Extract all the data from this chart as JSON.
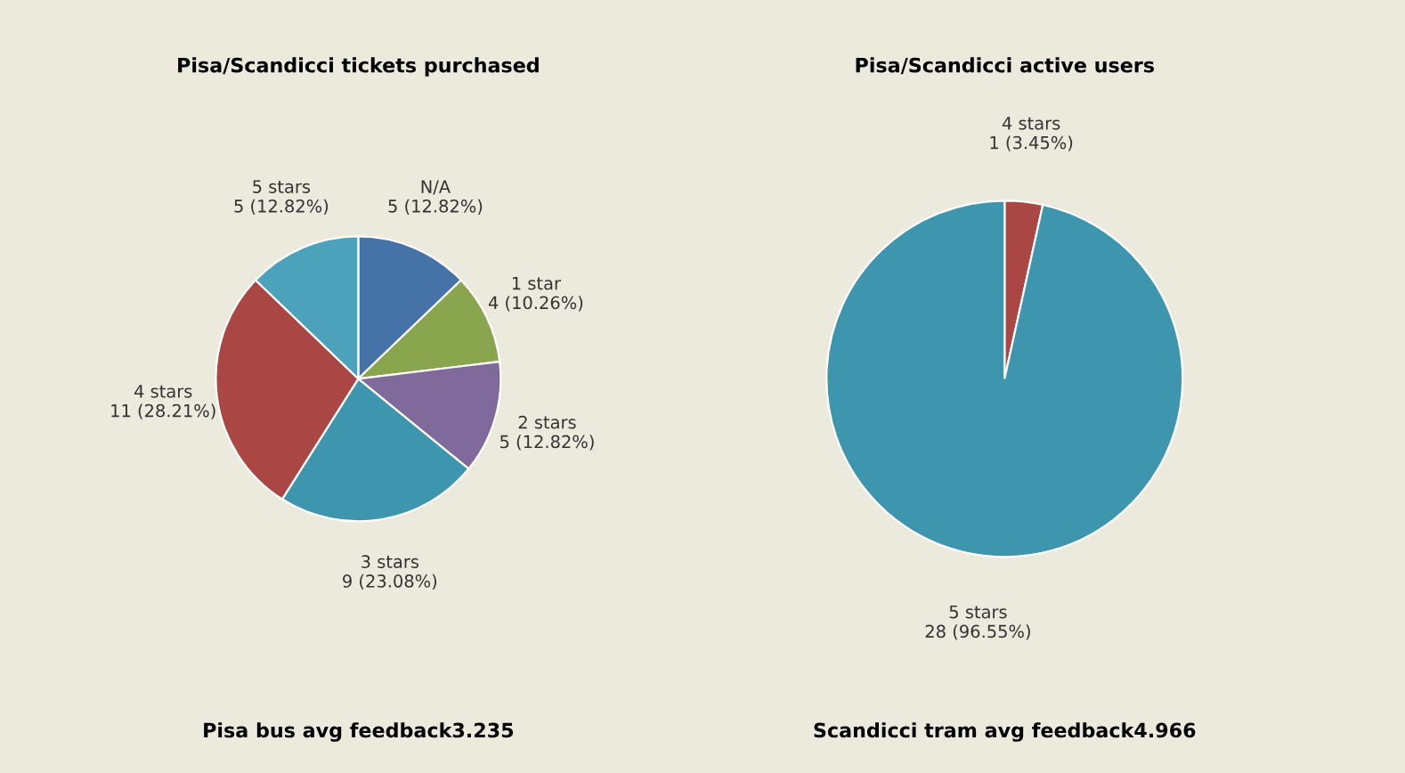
{
  "chart_data": [
    {
      "type": "pie",
      "title": "Pisa/Scandicci tickets purchased",
      "categories": [
        "N/A",
        "1 star",
        "2 stars",
        "3 stars",
        "4 stars",
        "5 stars"
      ],
      "values": [
        5,
        4,
        5,
        9,
        11,
        5
      ],
      "colors": [
        "#4572a7",
        "#89a54e",
        "#80699b",
        "#3d96ae",
        "#aa4643",
        "#4ba2ba"
      ],
      "value_labels": [
        "5 (12.82%)",
        "4 (10.26%)",
        "5 (12.82%)",
        "9 (23.08%)",
        "11 (28.21%)",
        "5 (12.82%)"
      ],
      "annotations": [
        "Pisa bus avg feedback3.235"
      ]
    },
    {
      "type": "pie",
      "title": "Pisa/Scandicci active users",
      "categories": [
        "4 stars",
        "5 stars"
      ],
      "values": [
        1,
        28
      ],
      "colors": [
        "#aa4643",
        "#3d96ae"
      ],
      "value_labels": [
        "1 (3.45%)",
        "28 (96.55%)"
      ],
      "annotations": [
        "Scandicci tram avg feedback4.966"
      ]
    }
  ]
}
